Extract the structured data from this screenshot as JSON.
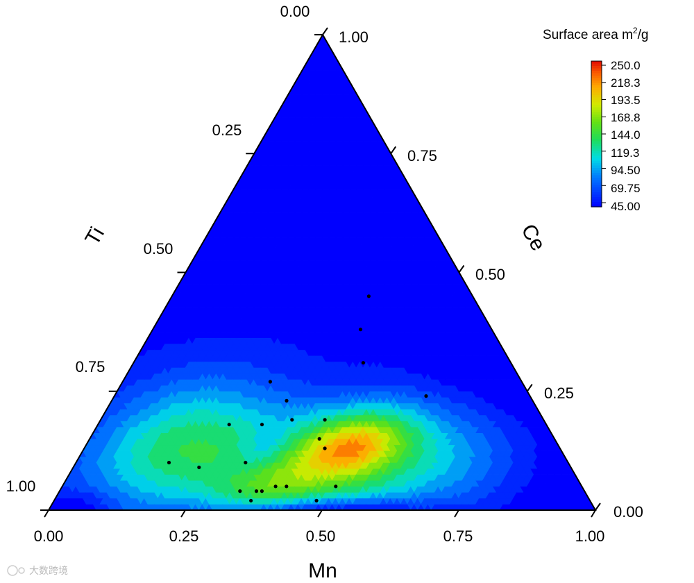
{
  "chart_data": {
    "type": "ternary-contour",
    "axes": {
      "bottom": {
        "label": "Mn",
        "ticks": [
          "0.00",
          "0.25",
          "0.50",
          "0.75",
          "1.00"
        ],
        "range": [
          0,
          1
        ]
      },
      "left": {
        "label": "Ti",
        "ticks": [
          "0.00",
          "0.25",
          "0.50",
          "0.75",
          "1.00"
        ],
        "range": [
          0,
          1
        ]
      },
      "right": {
        "label": "Ce",
        "ticks": [
          "0.00",
          "0.25",
          "0.50",
          "0.75",
          "1.00"
        ],
        "range": [
          0,
          1
        ]
      }
    },
    "colorbar": {
      "title_main": "Surface area m",
      "title_sup": "2",
      "title_tail": "/g",
      "levels": [
        "250.0",
        "218.3",
        "193.5",
        "168.8",
        "144.0",
        "119.3",
        "94.50",
        "69.75",
        "45.00"
      ],
      "range": [
        45,
        250
      ]
    },
    "hotspot": {
      "mn": 0.49,
      "ce": 0.14,
      "value": 232
    },
    "sample_points": [
      {
        "mn": 0.36,
        "ce": 0.45
      },
      {
        "mn": 0.38,
        "ce": 0.38
      },
      {
        "mn": 0.42,
        "ce": 0.31
      },
      {
        "mn": 0.27,
        "ce": 0.27
      },
      {
        "mn": 0.32,
        "ce": 0.23
      },
      {
        "mn": 0.57,
        "ce": 0.24
      },
      {
        "mn": 0.24,
        "ce": 0.18
      },
      {
        "mn": 0.3,
        "ce": 0.18
      },
      {
        "mn": 0.35,
        "ce": 0.19
      },
      {
        "mn": 0.41,
        "ce": 0.19
      },
      {
        "mn": 0.42,
        "ce": 0.15
      },
      {
        "mn": 0.44,
        "ce": 0.13
      },
      {
        "mn": 0.17,
        "ce": 0.1
      },
      {
        "mn": 0.23,
        "ce": 0.09
      },
      {
        "mn": 0.31,
        "ce": 0.1
      },
      {
        "mn": 0.33,
        "ce": 0.04
      },
      {
        "mn": 0.36,
        "ce": 0.04
      },
      {
        "mn": 0.37,
        "ce": 0.04
      },
      {
        "mn": 0.39,
        "ce": 0.05
      },
      {
        "mn": 0.41,
        "ce": 0.05
      },
      {
        "mn": 0.5,
        "ce": 0.05
      },
      {
        "mn": 0.36,
        "ce": 0.02
      },
      {
        "mn": 0.48,
        "ce": 0.02
      }
    ]
  },
  "watermark": "大数跨境"
}
